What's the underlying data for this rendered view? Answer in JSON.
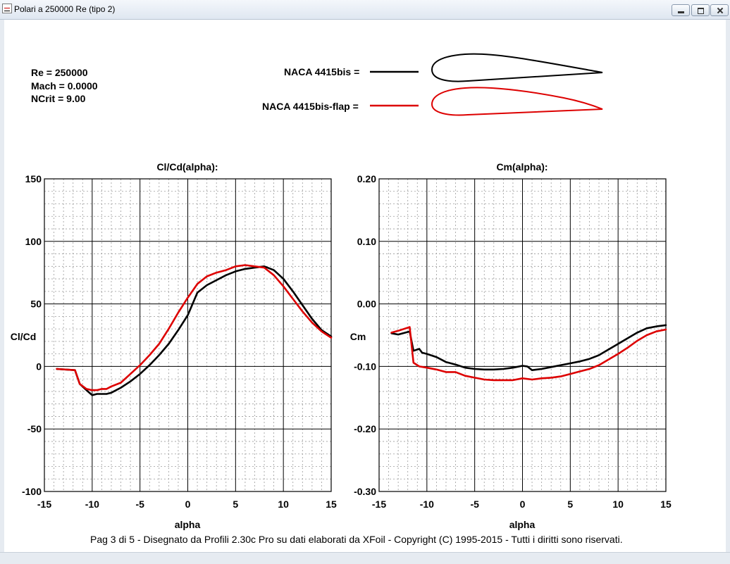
{
  "window": {
    "title": "Polari a 250000 Re (tipo 2)",
    "minimize_icon": "minimize-icon",
    "maximize_icon": "maximize-icon",
    "close_icon": "close-icon"
  },
  "info": {
    "re": "Re = 250000",
    "mach": "Mach = 0.0000",
    "ncrit": "NCrit = 9.00"
  },
  "legend": [
    {
      "label": "NACA 4415bis =",
      "color": "#000000"
    },
    {
      "label": "NACA 4415bis-flap =",
      "color": "#dd0000"
    }
  ],
  "chart_data": [
    {
      "type": "line",
      "title": "Cl/Cd(alpha):",
      "xlabel": "alpha",
      "ylabel": "Cl/Cd",
      "xlim": [
        -15,
        15
      ],
      "ylim": [
        -100,
        150
      ],
      "xticks": [
        "-15",
        "-10",
        "-5",
        "0",
        "5",
        "10",
        "15"
      ],
      "yticks": [
        "150",
        "100",
        "50",
        "0",
        "-50",
        "-100"
      ],
      "grid": true,
      "series": [
        {
          "name": "NACA 4415bis",
          "color": "#000000",
          "x": [
            -13.7,
            -11.8,
            -11.3,
            -10.6,
            -10,
            -9.5,
            -8.5,
            -8,
            -7,
            -6,
            -5,
            -4,
            -3,
            -2,
            -1,
            0,
            1,
            2,
            3,
            4,
            5,
            6,
            7,
            8,
            9,
            10,
            11,
            12,
            13,
            14,
            15
          ],
          "y": [
            -2,
            -3,
            -14,
            -19,
            -23,
            -22,
            -22,
            -21,
            -17,
            -12,
            -6,
            1,
            9,
            18,
            29,
            41,
            59,
            65,
            69,
            73,
            76,
            78,
            79,
            80,
            77,
            70,
            60,
            49,
            38,
            29,
            24
          ]
        },
        {
          "name": "NACA 4415bis-flap",
          "color": "#dd0000",
          "x": [
            -13.7,
            -11.8,
            -11.3,
            -10.6,
            -10,
            -9.5,
            -9,
            -8.5,
            -8,
            -7,
            -6,
            -5,
            -4,
            -3,
            -2,
            -1,
            0,
            1,
            2,
            3,
            4,
            5,
            6,
            7,
            8,
            9,
            10,
            11,
            12,
            13,
            14,
            15
          ],
          "y": [
            -2,
            -3,
            -14,
            -18,
            -19,
            -19,
            -18,
            -18,
            -16,
            -13,
            -6,
            1,
            9,
            18,
            30,
            43,
            55,
            66,
            72,
            75,
            77,
            80,
            81,
            80,
            79,
            73,
            64,
            54,
            44,
            35,
            28,
            23
          ]
        }
      ]
    },
    {
      "type": "line",
      "title": "Cm(alpha):",
      "xlabel": "alpha",
      "ylabel": "Cm",
      "xlim": [
        -15,
        15
      ],
      "ylim": [
        -0.3,
        0.2
      ],
      "xticks": [
        "-15",
        "-10",
        "-5",
        "0",
        "5",
        "10",
        "15"
      ],
      "yticks": [
        "0.20",
        "0.10",
        "0.00",
        "-0.10",
        "-0.20",
        "-0.30"
      ],
      "grid": true,
      "series": [
        {
          "name": "NACA 4415bis",
          "color": "#000000",
          "x": [
            -13.7,
            -13,
            -11.8,
            -11.4,
            -10.8,
            -10.5,
            -10,
            -9,
            -8,
            -7,
            -6,
            -5,
            -4,
            -3,
            -2,
            -1,
            0,
            0.5,
            1,
            2,
            3,
            4,
            5,
            6,
            7,
            8,
            9,
            10,
            11,
            12,
            13,
            14,
            15
          ],
          "y": [
            -0.047,
            -0.049,
            -0.044,
            -0.075,
            -0.072,
            -0.078,
            -0.08,
            -0.085,
            -0.093,
            -0.097,
            -0.102,
            -0.104,
            -0.105,
            -0.105,
            -0.104,
            -0.102,
            -0.099,
            -0.1,
            -0.106,
            -0.104,
            -0.101,
            -0.098,
            -0.095,
            -0.092,
            -0.088,
            -0.082,
            -0.073,
            -0.064,
            -0.055,
            -0.046,
            -0.039,
            -0.036,
            -0.034
          ]
        },
        {
          "name": "NACA 4415bis-flap",
          "color": "#dd0000",
          "x": [
            -13.7,
            -13,
            -11.8,
            -11.4,
            -10.8,
            -10,
            -9,
            -8,
            -7,
            -6,
            -5,
            -4,
            -3,
            -2,
            -1,
            0,
            1,
            2,
            3,
            4,
            5,
            6,
            7,
            8,
            9,
            10,
            11,
            12,
            13,
            14,
            15
          ],
          "y": [
            -0.046,
            -0.043,
            -0.037,
            -0.094,
            -0.1,
            -0.102,
            -0.105,
            -0.109,
            -0.109,
            -0.115,
            -0.118,
            -0.121,
            -0.122,
            -0.122,
            -0.122,
            -0.119,
            -0.121,
            -0.119,
            -0.118,
            -0.116,
            -0.112,
            -0.108,
            -0.104,
            -0.098,
            -0.089,
            -0.08,
            -0.07,
            -0.059,
            -0.05,
            -0.044,
            -0.041
          ]
        }
      ]
    }
  ],
  "footer": "Pag 3 di 5  -   Disegnato da Profili 2.30c Pro su dati elaborati da XFoil - Copyright (C) 1995-2015 - Tutti i diritti sono riservati."
}
